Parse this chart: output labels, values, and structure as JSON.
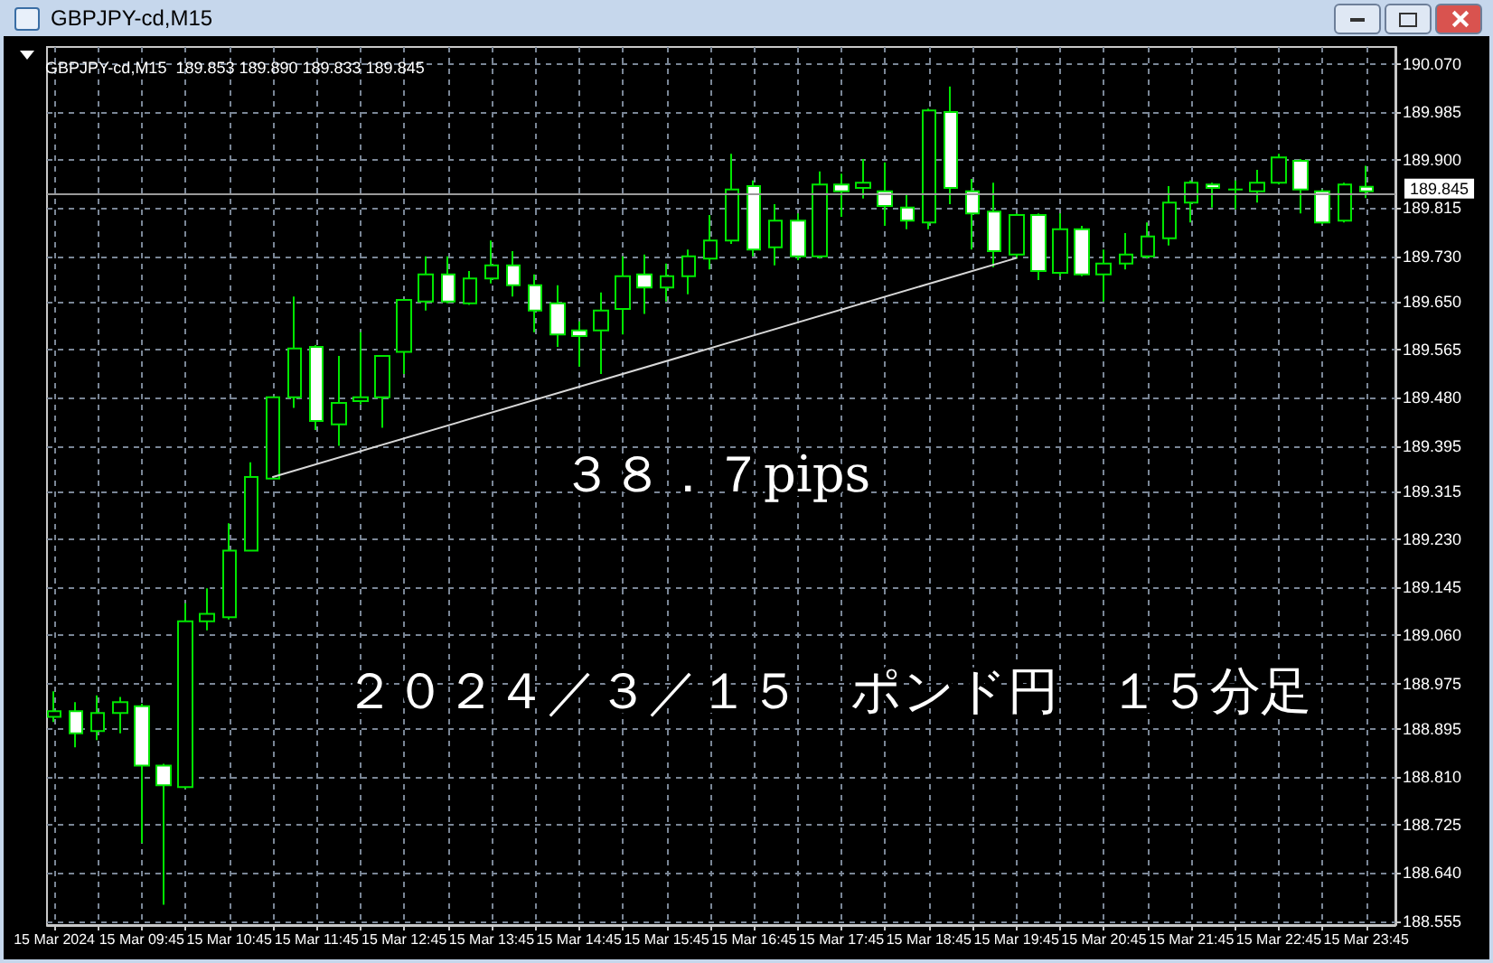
{
  "chart_data": {
    "type": "candlestick",
    "title": "GBPJPY-cd,M15",
    "subtitle": "GBPJPY-cd,M15  189.853 189.890 189.833 189.845",
    "annotations": [
      "３８．７pips",
      "２０２４／３／１５　ポンド円　１５分足"
    ],
    "x": [
      "2024-03-15T08:45",
      "2024-03-15T09:00",
      "2024-03-15T09:15",
      "2024-03-15T09:30",
      "2024-03-15T09:45",
      "2024-03-15T10:00",
      "2024-03-15T10:15",
      "2024-03-15T10:30",
      "2024-03-15T10:45",
      "2024-03-15T11:00",
      "2024-03-15T11:15",
      "2024-03-15T11:30",
      "2024-03-15T11:45",
      "2024-03-15T12:00",
      "2024-03-15T12:15",
      "2024-03-15T12:30",
      "2024-03-15T12:45",
      "2024-03-15T13:00",
      "2024-03-15T13:15",
      "2024-03-15T13:30",
      "2024-03-15T13:45",
      "2024-03-15T14:00",
      "2024-03-15T14:15",
      "2024-03-15T14:30",
      "2024-03-15T14:45",
      "2024-03-15T15:00",
      "2024-03-15T15:15",
      "2024-03-15T15:30",
      "2024-03-15T15:45",
      "2024-03-15T16:00",
      "2024-03-15T16:15",
      "2024-03-15T16:30",
      "2024-03-15T16:45",
      "2024-03-15T17:00",
      "2024-03-15T17:15",
      "2024-03-15T17:30",
      "2024-03-15T17:45",
      "2024-03-15T18:00",
      "2024-03-15T18:15",
      "2024-03-15T18:30",
      "2024-03-15T18:45",
      "2024-03-15T19:00",
      "2024-03-15T19:15",
      "2024-03-15T19:30",
      "2024-03-15T19:45",
      "2024-03-15T20:00",
      "2024-03-15T20:15",
      "2024-03-15T20:30",
      "2024-03-15T20:45",
      "2024-03-15T21:00",
      "2024-03-15T21:15",
      "2024-03-15T21:30",
      "2024-03-15T21:45",
      "2024-03-15T22:00",
      "2024-03-15T22:15",
      "2024-03-15T22:30",
      "2024-03-15T22:45",
      "2024-03-15T23:00",
      "2024-03-15T23:15",
      "2024-03-15T23:30",
      "2024-03-15T23:45"
    ],
    "series": [
      {
        "color": "#00e600",
        "ohlc": [
          [
            188.916,
            188.961,
            188.907,
            188.926
          ],
          [
            188.926,
            188.942,
            188.862,
            188.887
          ],
          [
            188.891,
            188.954,
            188.875,
            188.923
          ],
          [
            188.923,
            188.951,
            188.887,
            188.942
          ],
          [
            188.935,
            188.939,
            188.693,
            188.83
          ],
          [
            188.83,
            188.833,
            188.584,
            188.795
          ],
          [
            188.792,
            189.117,
            188.789,
            189.085
          ],
          [
            189.085,
            189.143,
            189.069,
            189.098
          ],
          [
            189.092,
            189.258,
            189.088,
            189.21
          ],
          [
            189.21,
            189.366,
            189.21,
            189.34
          ],
          [
            189.337,
            189.481,
            189.337,
            189.481
          ],
          [
            189.481,
            189.659,
            189.462,
            189.567
          ],
          [
            189.57,
            189.573,
            189.423,
            189.439
          ],
          [
            189.433,
            189.554,
            189.395,
            189.471
          ],
          [
            189.474,
            189.596,
            189.468,
            189.481
          ],
          [
            189.481,
            189.554,
            189.427,
            189.554
          ],
          [
            189.561,
            189.653,
            189.522,
            189.653
          ],
          [
            189.65,
            189.73,
            189.634,
            189.698
          ],
          [
            189.698,
            189.73,
            189.647,
            189.65
          ],
          [
            189.647,
            189.704,
            189.644,
            189.691
          ],
          [
            189.691,
            189.758,
            189.682,
            189.714
          ],
          [
            189.714,
            189.739,
            189.659,
            189.679
          ],
          [
            189.679,
            189.698,
            189.596,
            189.634
          ],
          [
            189.647,
            189.679,
            189.57,
            189.592
          ],
          [
            189.599,
            189.615,
            189.535,
            189.589
          ],
          [
            189.599,
            189.666,
            189.522,
            189.634
          ],
          [
            189.637,
            189.73,
            189.592,
            189.695
          ],
          [
            189.698,
            189.733,
            189.628,
            189.675
          ],
          [
            189.675,
            189.717,
            189.65,
            189.695
          ],
          [
            189.695,
            189.742,
            189.663,
            189.73
          ],
          [
            189.726,
            189.803,
            189.707,
            189.758
          ],
          [
            189.758,
            189.911,
            189.752,
            189.848
          ],
          [
            189.854,
            189.864,
            189.73,
            189.742
          ],
          [
            189.746,
            189.822,
            189.714,
            189.793
          ],
          [
            189.793,
            189.806,
            189.723,
            189.73
          ],
          [
            189.73,
            189.88,
            189.726,
            189.857
          ],
          [
            189.857,
            189.876,
            189.8,
            189.845
          ],
          [
            189.851,
            189.902,
            189.832,
            189.86
          ],
          [
            189.845,
            189.896,
            189.784,
            189.819
          ],
          [
            189.816,
            189.838,
            189.778,
            189.793
          ],
          [
            189.79,
            189.991,
            189.778,
            189.988
          ],
          [
            189.985,
            190.03,
            189.822,
            189.851
          ],
          [
            189.845,
            189.867,
            189.742,
            189.806
          ],
          [
            189.809,
            189.86,
            189.711,
            189.739
          ],
          [
            189.733,
            189.806,
            189.726,
            189.803
          ],
          [
            189.803,
            189.806,
            189.688,
            189.704
          ],
          [
            189.701,
            189.806,
            189.695,
            189.778
          ],
          [
            189.778,
            189.784,
            189.695,
            189.698
          ],
          [
            189.698,
            189.742,
            189.65,
            189.717
          ],
          [
            189.717,
            189.771,
            189.707,
            189.733
          ],
          [
            189.73,
            189.79,
            189.726,
            189.765
          ],
          [
            189.762,
            189.854,
            189.749,
            189.825
          ],
          [
            189.825,
            189.864,
            189.79,
            189.86
          ],
          [
            189.857,
            189.86,
            189.816,
            189.851
          ],
          [
            189.848,
            189.864,
            189.813,
            189.848
          ],
          [
            189.845,
            189.883,
            189.825,
            189.86
          ],
          [
            189.86,
            189.911,
            189.857,
            189.905
          ],
          [
            189.899,
            189.902,
            189.806,
            189.848
          ],
          [
            189.845,
            189.848,
            189.787,
            189.79
          ],
          [
            189.793,
            189.86,
            189.79,
            189.857
          ],
          [
            189.853,
            189.89,
            189.833,
            189.845
          ]
        ]
      },
      {
        "type": "line",
        "color": "#d8d8d8",
        "x": [
          "2024-03-15T11:15",
          "2024-03-15T19:45"
        ],
        "values": [
          189.34,
          189.727
        ]
      }
    ],
    "ref_lines": [
      {
        "axis": "y",
        "value": 189.845,
        "label": "189.845",
        "color": "#9a9a9a",
        "line_style": "solid"
      }
    ],
    "xlim": [
      "2024-03-15T08:40",
      "2024-03-16T00:05"
    ],
    "xticks": [
      {
        "value": "2024-03-15T08:45",
        "label": "15 Mar 2024"
      },
      {
        "value": "2024-03-15T09:15",
        "label": null
      },
      {
        "value": "2024-03-15T09:45",
        "label": "15 Mar 09:45"
      },
      {
        "value": "2024-03-15T10:15",
        "label": null
      },
      {
        "value": "2024-03-15T10:45",
        "label": "15 Mar 10:45"
      },
      {
        "value": "2024-03-15T11:15",
        "label": null
      },
      {
        "value": "2024-03-15T11:45",
        "label": "15 Mar 11:45"
      },
      {
        "value": "2024-03-15T12:15",
        "label": null
      },
      {
        "value": "2024-03-15T12:45",
        "label": "15 Mar 12:45"
      },
      {
        "value": "2024-03-15T13:15",
        "label": null
      },
      {
        "value": "2024-03-15T13:45",
        "label": "15 Mar 13:45"
      },
      {
        "value": "2024-03-15T14:15",
        "label": null
      },
      {
        "value": "2024-03-15T14:45",
        "label": "15 Mar 14:45"
      },
      {
        "value": "2024-03-15T15:15",
        "label": null
      },
      {
        "value": "2024-03-15T15:45",
        "label": "15 Mar 15:45"
      },
      {
        "value": "2024-03-15T16:15",
        "label": null
      },
      {
        "value": "2024-03-15T16:45",
        "label": "15 Mar 16:45"
      },
      {
        "value": "2024-03-15T17:15",
        "label": null
      },
      {
        "value": "2024-03-15T17:45",
        "label": "15 Mar 17:45"
      },
      {
        "value": "2024-03-15T18:15",
        "label": null
      },
      {
        "value": "2024-03-15T18:45",
        "label": "15 Mar 18:45"
      },
      {
        "value": "2024-03-15T19:15",
        "label": null
      },
      {
        "value": "2024-03-15T19:45",
        "label": "15 Mar 19:45"
      },
      {
        "value": "2024-03-15T20:15",
        "label": null
      },
      {
        "value": "2024-03-15T20:45",
        "label": "15 Mar 20:45"
      },
      {
        "value": "2024-03-15T21:15",
        "label": null
      },
      {
        "value": "2024-03-15T21:45",
        "label": "15 Mar 21:45"
      },
      {
        "value": "2024-03-15T22:15",
        "label": null
      },
      {
        "value": "2024-03-15T22:45",
        "label": "15 Mar 22:45"
      },
      {
        "value": "2024-03-15T23:15",
        "label": null
      },
      {
        "value": "2024-03-15T23:45",
        "label": "15 Mar 23:45"
      }
    ],
    "ylim": [
      188.548,
      190.1
    ],
    "yticks": [
      {
        "value": 190.07,
        "label": "190.070"
      },
      189.985,
      {
        "value": 189.9,
        "label": "189.900"
      },
      189.815,
      {
        "value": 189.73,
        "label": "189.730"
      },
      {
        "value": 189.65,
        "label": "189.650"
      },
      189.565,
      {
        "value": 189.48,
        "label": "189.480"
      },
      189.395,
      189.315,
      {
        "value": 189.23,
        "label": "189.230"
      },
      189.145,
      {
        "value": 189.06,
        "label": "189.060"
      },
      188.975,
      188.895,
      {
        "value": 188.81,
        "label": "188.810"
      },
      188.725,
      {
        "value": 188.64,
        "label": "188.640"
      },
      188.555
    ],
    "grid": true
  }
}
